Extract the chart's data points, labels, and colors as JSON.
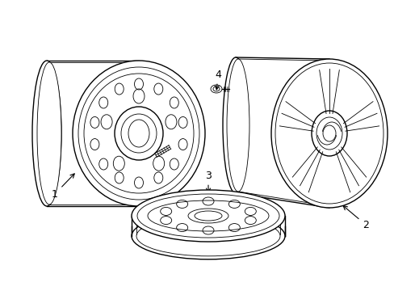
{
  "background_color": "#ffffff",
  "line_color": "#000000",
  "lw": 1.0,
  "tlw": 0.6,
  "fig_width": 4.89,
  "fig_height": 3.6,
  "dpi": 100
}
